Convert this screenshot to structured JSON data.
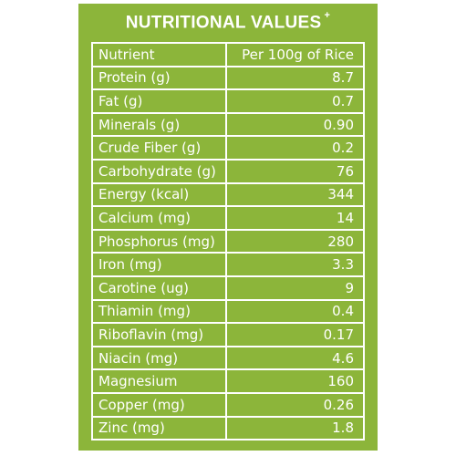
{
  "title": "NUTRITIONAL VALUES",
  "title_mark": "+",
  "header": {
    "nutrient": "Nutrient",
    "value": "Per 100g of Rice"
  },
  "rows": [
    {
      "nutrient": "Protein (g)",
      "value": "8.7"
    },
    {
      "nutrient": "Fat (g)",
      "value": "0.7"
    },
    {
      "nutrient": "Minerals (g)",
      "value": "0.90"
    },
    {
      "nutrient": "Crude Fiber (g)",
      "value": "0.2"
    },
    {
      "nutrient": "Carbohydrate (g)",
      "value": "76"
    },
    {
      "nutrient": "Energy (kcal)",
      "value": "344"
    },
    {
      "nutrient": "Calcium (mg)",
      "value": "14"
    },
    {
      "nutrient": "Phosphorus (mg)",
      "value": "280"
    },
    {
      "nutrient": "Iron (mg)",
      "value": "3.3"
    },
    {
      "nutrient": "Carotine (ug)",
      "value": "9"
    },
    {
      "nutrient": "Thiamin (mg)",
      "value": "0.4"
    },
    {
      "nutrient": "Riboflavin (mg)",
      "value": "0.17"
    },
    {
      "nutrient": "Niacin (mg)",
      "value": "4.6"
    },
    {
      "nutrient": "Magnesium",
      "value": "160"
    },
    {
      "nutrient": "Copper (mg)",
      "value": "0.26"
    },
    {
      "nutrient": "Zinc (mg)",
      "value": "1.8"
    }
  ],
  "colors": {
    "background": "#8cb53a",
    "text": "#ffffff",
    "lines": "#ffffff"
  }
}
